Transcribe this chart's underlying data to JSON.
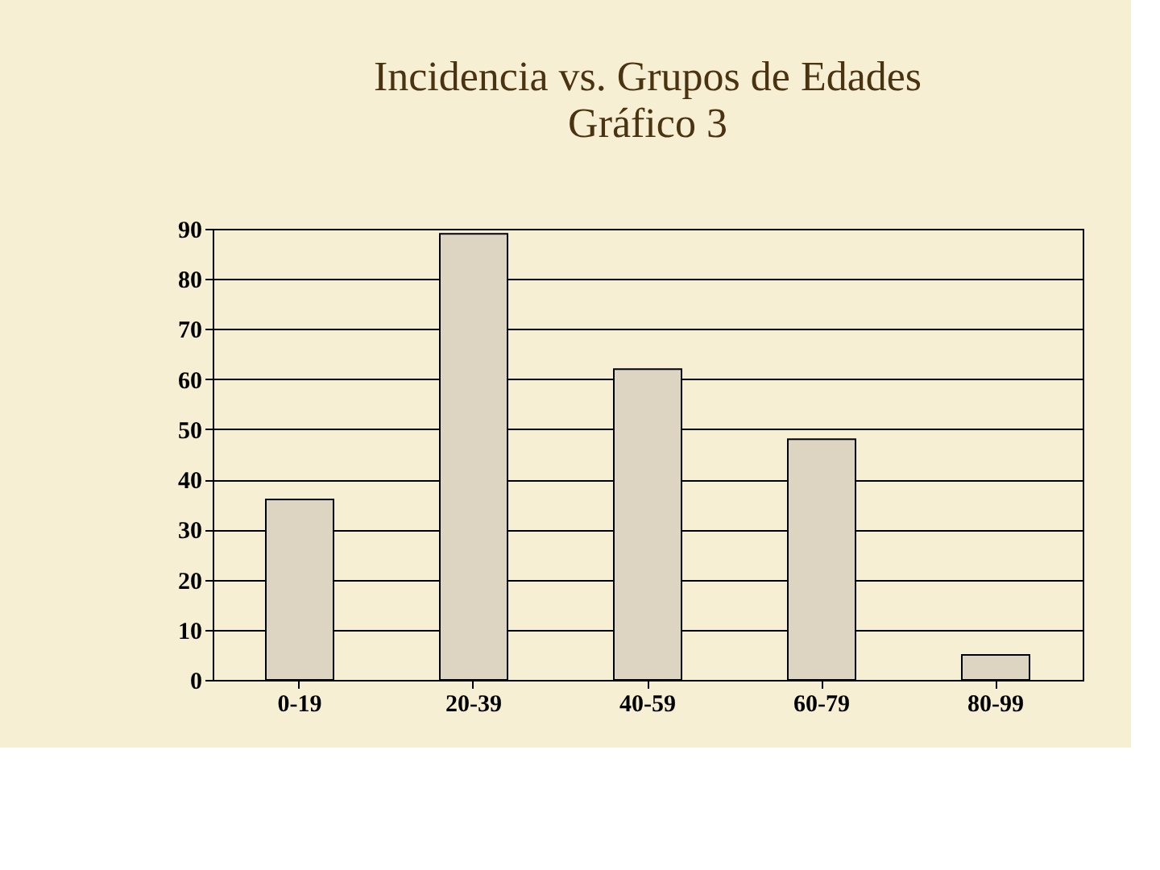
{
  "chart_data": {
    "type": "bar",
    "title": "Incidencia vs. Grupos de Edades",
    "subtitle": "Gráfico 3",
    "categories": [
      "0-19",
      "20-39",
      "40-59",
      "60-79",
      "80-99"
    ],
    "values": [
      36,
      89,
      62,
      48,
      5
    ],
    "color": "#ddd5c1",
    "ylim": [
      0,
      90
    ],
    "yticks": [
      0,
      10,
      20,
      30,
      40,
      50,
      60,
      70,
      80,
      90
    ],
    "grid": "y"
  }
}
